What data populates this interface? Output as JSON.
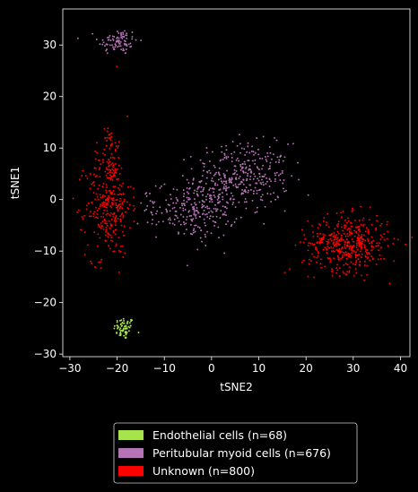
{
  "chart_data": {
    "type": "scatter",
    "title": "",
    "xlabel": "tSNE2",
    "ylabel": "tSNE1",
    "xlim": [
      -31.5,
      42
    ],
    "ylim": [
      -30.5,
      37
    ],
    "xticks": [
      -30,
      -20,
      -10,
      0,
      10,
      20,
      30,
      40
    ],
    "yticks": [
      -30,
      -20,
      -10,
      0,
      10,
      20,
      30
    ],
    "grid": false,
    "legend_placement": "below",
    "background": "#000000",
    "series": [
      {
        "name": "Endothelial cells (n=68)",
        "color": "#a6e44a",
        "count": 68,
        "clusters": [
          {
            "cx": -18.5,
            "cy": -25.0,
            "sx": 1.1,
            "sy": 1.1,
            "n": 68
          }
        ]
      },
      {
        "name": "Peritubular myoid cells (n=676)",
        "color": "#b574b5",
        "count": 676,
        "clusters": [
          {
            "cx": -19.8,
            "cy": 30.7,
            "sx": 2.1,
            "sy": 1.3,
            "n": 90
          },
          {
            "cx": 6.5,
            "cy": 4.5,
            "sx": 5.0,
            "sy": 3.2,
            "n": 330
          },
          {
            "cx": -3.0,
            "cy": -2.0,
            "sx": 4.2,
            "sy": 2.8,
            "n": 240
          },
          {
            "cx": -13.0,
            "cy": -1.5,
            "sx": 1.5,
            "sy": 1.5,
            "n": 16
          }
        ]
      },
      {
        "name": "Unknown (n=800)",
        "color": "#ff0000",
        "count": 800,
        "clusters": [
          {
            "cx": -21.8,
            "cy": -1.0,
            "sx": 2.4,
            "sy": 5.0,
            "n": 300
          },
          {
            "cx": -21.0,
            "cy": 8.0,
            "sx": 1.2,
            "sy": 2.2,
            "n": 40
          },
          {
            "cx": -22.0,
            "cy": 12.5,
            "sx": 0.6,
            "sy": 0.8,
            "n": 12
          },
          {
            "cx": 29.0,
            "cy": -8.5,
            "sx": 4.2,
            "sy": 2.7,
            "n": 440
          },
          {
            "cx": -20.5,
            "cy": 26.0,
            "sx": 0.3,
            "sy": 0.3,
            "n": 1
          },
          {
            "cx": 19.0,
            "cy": -12.0,
            "sx": 0.5,
            "sy": 0.5,
            "n": 2
          },
          {
            "cx": -25.0,
            "cy": -13.0,
            "sx": 1.0,
            "sy": 1.0,
            "n": 5
          }
        ]
      }
    ]
  },
  "legend": {
    "items": [
      {
        "label": "Endothelial cells (n=68)",
        "color": "#a6e44a"
      },
      {
        "label": "Peritubular myoid cells (n=676)",
        "color": "#b574b5"
      },
      {
        "label": "Unknown (n=800)",
        "color": "#ff0000"
      }
    ]
  }
}
